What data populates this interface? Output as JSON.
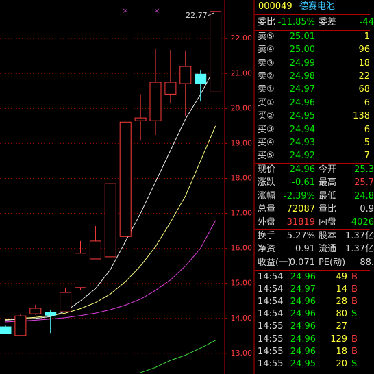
{
  "chart_data": {
    "type": "candlestick",
    "annotation": "22.77",
    "ylim": [
      12.41,
      23.1
    ],
    "yticks": [
      {
        "value": 13,
        "label": "13.00"
      },
      {
        "value": 14,
        "label": "14.00"
      },
      {
        "value": 15,
        "label": "15.00"
      },
      {
        "value": 16,
        "label": "16.00"
      },
      {
        "value": 17,
        "label": "17.00"
      },
      {
        "value": 18,
        "label": "18.00"
      },
      {
        "value": 19,
        "label": "19.00"
      },
      {
        "value": 20,
        "label": "20.00"
      },
      {
        "value": 21,
        "label": "21.00"
      },
      {
        "value": 22,
        "label": "22.00"
      }
    ],
    "grid": true,
    "up_color": "#ff3c3c",
    "down_color": "#54fcfc",
    "open": [
      13.76,
      13.51,
      14.13,
      14.17,
      14.19,
      14.88,
      15.7,
      15.76,
      16.34,
      19.65,
      19.65,
      20.41,
      20.71,
      20.98,
      20.47
    ],
    "high": [
      13.8,
      14.13,
      14.39,
      14.25,
      14.88,
      16.21,
      16.64,
      17.85,
      19.61,
      20.41,
      21.69,
      21.67,
      21.63,
      21.1,
      22.77
    ],
    "low": [
      13.57,
      13.51,
      14.1,
      13.58,
      14.19,
      14.82,
      15.7,
      15.76,
      16.34,
      19.08,
      19.24,
      20.16,
      19.77,
      20.2,
      20.47
    ],
    "close": [
      13.57,
      14.07,
      14.29,
      14.09,
      14.74,
      15.86,
      16.21,
      17.85,
      19.61,
      19.73,
      20.75,
      20.75,
      21.2,
      20.71,
      22.77
    ],
    "series": [
      {
        "name": "MA5",
        "color": "#f0f0f0",
        "values": [
          13.95,
          13.98,
          14.0,
          14.05,
          14.2,
          14.5,
          14.85,
          15.4,
          16.2,
          17.0,
          17.9,
          18.8,
          19.7,
          20.4,
          21.2
        ]
      },
      {
        "name": "MA10",
        "color": "#ffff80",
        "values": [
          13.97,
          14.0,
          14.03,
          14.08,
          14.15,
          14.28,
          14.45,
          14.7,
          15.05,
          15.5,
          16.05,
          16.75,
          17.5,
          18.5,
          19.5
        ]
      },
      {
        "name": "MA20",
        "color": "#e040e0",
        "values": [
          13.9,
          13.92,
          13.95,
          13.98,
          14.02,
          14.08,
          14.15,
          14.25,
          14.38,
          14.55,
          14.8,
          15.1,
          15.5,
          16.0,
          16.8
        ]
      },
      {
        "name": "MA60",
        "color": "#40e040",
        "values": [
          null,
          null,
          null,
          null,
          null,
          null,
          null,
          null,
          null,
          12.45,
          12.6,
          12.8,
          12.95,
          13.15,
          13.37
        ]
      }
    ]
  },
  "quote": {
    "code": "000049",
    "name": "德赛电池",
    "top": [
      {
        "label": "委比",
        "value": "-11.85%",
        "color": "green"
      },
      {
        "label": "委差",
        "value": "-44",
        "color": "green"
      }
    ],
    "asks": [
      {
        "label": "卖⑤",
        "price": "25.01",
        "volume": "1"
      },
      {
        "label": "卖④",
        "price": "25.00",
        "volume": "96"
      },
      {
        "label": "卖③",
        "price": "24.99",
        "volume": "18"
      },
      {
        "label": "卖②",
        "price": "24.98",
        "volume": "22"
      },
      {
        "label": "卖①",
        "price": "24.97",
        "volume": "68"
      }
    ],
    "bids": [
      {
        "label": "买①",
        "price": "24.96",
        "volume": "6"
      },
      {
        "label": "买②",
        "price": "24.95",
        "volume": "138"
      },
      {
        "label": "买③",
        "price": "24.94",
        "volume": "6"
      },
      {
        "label": "买④",
        "price": "24.93",
        "volume": "5"
      },
      {
        "label": "买⑤",
        "price": "24.92",
        "volume": "7"
      }
    ],
    "stats": [
      [
        {
          "label": "现价",
          "value": "24.96",
          "color": "green"
        },
        {
          "label": "今开",
          "value": "25.3",
          "color": "green"
        }
      ],
      [
        {
          "label": "涨跌",
          "value": "-0.61",
          "color": "green"
        },
        {
          "label": "最高",
          "value": "25.7",
          "color": "red"
        }
      ],
      [
        {
          "label": "涨幅",
          "value": "-2.39%",
          "color": "green"
        },
        {
          "label": "最低",
          "value": "24.8",
          "color": "green"
        }
      ],
      [
        {
          "label": "总量",
          "value": "72087",
          "color": "yellow"
        },
        {
          "label": "量比",
          "value": "0.9",
          "color": "white"
        }
      ],
      [
        {
          "label": "外盘",
          "value": "31819",
          "color": "red"
        },
        {
          "label": "内盘",
          "value": "4026",
          "color": "green"
        }
      ]
    ],
    "finance": [
      [
        {
          "label": "换手",
          "value": "5.27%",
          "color": "white"
        },
        {
          "label": "股本",
          "value": "1.37亿",
          "color": "white"
        }
      ],
      [
        {
          "label": "净资",
          "value": "0.91",
          "color": "white"
        },
        {
          "label": "流通",
          "value": "1.37亿",
          "color": "white"
        }
      ],
      [
        {
          "label": "收益(一)",
          "value": "0.071",
          "color": "white"
        },
        {
          "label": "PE(动)",
          "value": "88.",
          "color": "white"
        }
      ]
    ],
    "ticks": [
      {
        "time": "14:54",
        "price": "24.96",
        "volume": "49",
        "side": "B"
      },
      {
        "time": "14:54",
        "price": "24.97",
        "volume": "14",
        "side": "B"
      },
      {
        "time": "14:54",
        "price": "24.96",
        "volume": "28",
        "side": "B"
      },
      {
        "time": "14:54",
        "price": "24.96",
        "volume": "80",
        "side": "S"
      },
      {
        "time": "14:55",
        "price": "24.96",
        "volume": "27",
        "side": null
      },
      {
        "time": "14:55",
        "price": "24.96",
        "volume": "129",
        "side": "B"
      },
      {
        "time": "14:55",
        "price": "24.96",
        "volume": "18",
        "side": "B"
      },
      {
        "time": "14:55",
        "price": "24.95",
        "volume": "20",
        "side": "S"
      }
    ]
  }
}
